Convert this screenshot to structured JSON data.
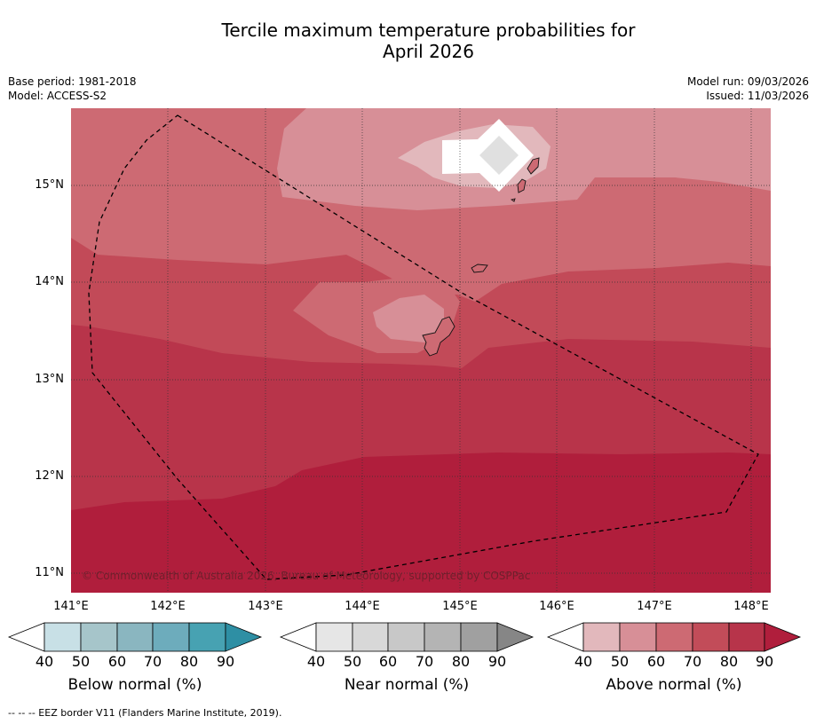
{
  "title_line1": "Tercile maximum temperature probabilities for",
  "title_line2": "April 2026",
  "meta": {
    "base_period": "Base period: 1981-2018",
    "model": "Model: ACCESS-S2",
    "model_run": "Model run: 09/03/2026",
    "issued": "Issued: 11/03/2026"
  },
  "map": {
    "lat_labels": [
      "15°N",
      "14°N",
      "13°N",
      "12°N",
      "11°N"
    ],
    "lon_labels": [
      "141°E",
      "142°E",
      "143°E",
      "144°E",
      "145°E",
      "146°E",
      "147°E",
      "148°E"
    ],
    "copyright": "© Commonwealth of Australia 2026, Bureau of Meteorology, supported by COSPPac"
  },
  "colorbars": [
    {
      "name": "below",
      "label": "Below normal (%)",
      "ticks": [
        "40",
        "50",
        "60",
        "70",
        "80",
        "90"
      ],
      "colors": [
        "#ffffff",
        "#c8e0e6",
        "#a6c5ca",
        "#8ab6c0",
        "#6dacbc",
        "#47a2b2",
        "#2e8fa4"
      ]
    },
    {
      "name": "near",
      "label": "Near normal (%)",
      "ticks": [
        "40",
        "50",
        "60",
        "70",
        "80",
        "90"
      ],
      "colors": [
        "#ffffff",
        "#e6e6e6",
        "#d8d8d8",
        "#c8c8c8",
        "#b4b4b4",
        "#a0a0a0",
        "#868686"
      ]
    },
    {
      "name": "above",
      "label": "Above normal (%)",
      "ticks": [
        "40",
        "50",
        "60",
        "70",
        "80",
        "90"
      ],
      "colors": [
        "#ffffff",
        "#e2b8bc",
        "#d78f97",
        "#cd6a73",
        "#c24c59",
        "#b7344a",
        "#b01e3c"
      ]
    }
  ],
  "footer": "--  --  -- EEZ border V11 (Flanders Marine Institute, 2019)."
}
